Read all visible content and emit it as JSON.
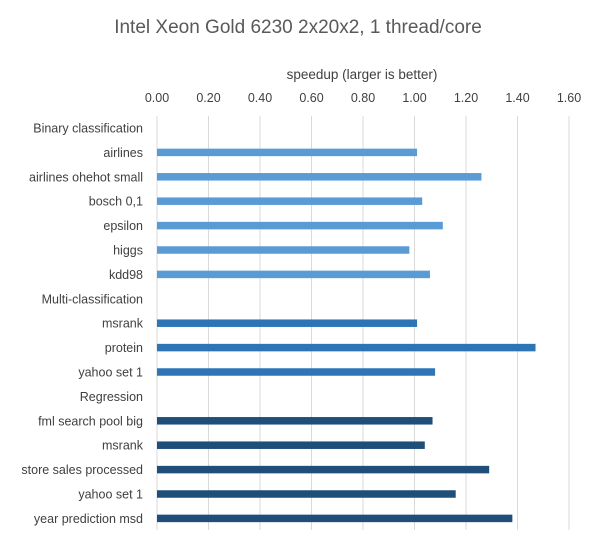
{
  "chart_data": {
    "type": "bar",
    "orientation": "horizontal",
    "title": "Intel Xeon Gold 6230 2x20x2, 1 thread/core",
    "xlabel": "speedup (larger is better)",
    "ylabel": "",
    "xlim": [
      0,
      1.6
    ],
    "ticks": [
      "0.00",
      "0.20",
      "0.40",
      "0.60",
      "0.80",
      "1.00",
      "1.20",
      "1.40",
      "1.60"
    ],
    "tick_values": [
      0,
      0.2,
      0.4,
      0.6,
      0.8,
      1.0,
      1.2,
      1.4,
      1.6
    ],
    "axis_position": "top",
    "grid": true,
    "legend": "none",
    "colors": {
      "group1": "#5b9bd5",
      "group2": "#2e75b6",
      "group3": "#1f4e79"
    },
    "categories": [
      "Binary classification",
      "airlines",
      "airlines ohehot small",
      "bosch 0,1",
      "epsilon",
      "higgs",
      "kdd98",
      "Multi-classification",
      "msrank",
      "protein",
      "yahoo set 1",
      "Regression",
      "fml search pool big",
      "msrank",
      "store sales processed",
      "yahoo set 1",
      "year prediction msd"
    ],
    "values": [
      null,
      1.01,
      1.26,
      1.03,
      1.11,
      0.98,
      1.06,
      null,
      1.01,
      1.47,
      1.08,
      null,
      1.07,
      1.04,
      1.29,
      1.16,
      1.38
    ],
    "groups": [
      0,
      1,
      1,
      1,
      1,
      1,
      1,
      0,
      2,
      2,
      2,
      0,
      3,
      3,
      3,
      3,
      3
    ]
  }
}
